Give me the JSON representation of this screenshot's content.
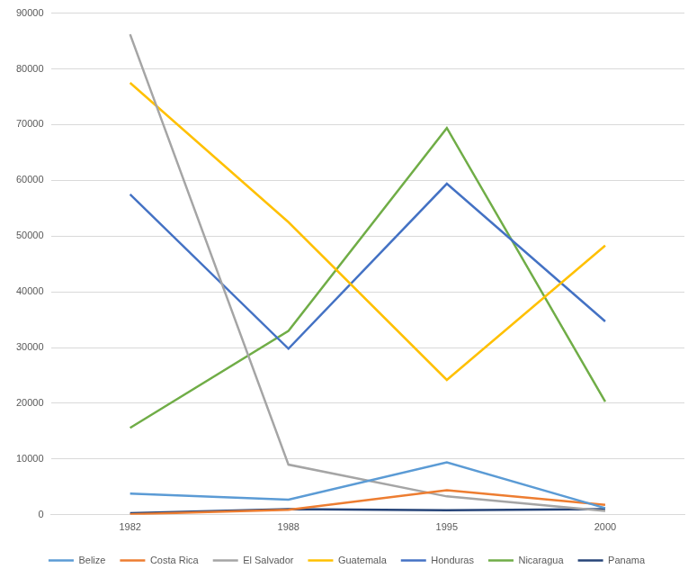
{
  "chart_data": {
    "type": "line",
    "categories": [
      "1982",
      "1988",
      "1995",
      "2000"
    ],
    "series": [
      {
        "name": "Belize",
        "color": "#5B9BD5",
        "values": [
          3800,
          2700,
          9400,
          1200
        ]
      },
      {
        "name": "Costa Rica",
        "color": "#ED7D31",
        "values": [
          100,
          900,
          4400,
          1800
        ]
      },
      {
        "name": "El Salvador",
        "color": "#A5A5A5",
        "values": [
          86200,
          9000,
          3300,
          700
        ]
      },
      {
        "name": "Guatemala",
        "color": "#FFC000",
        "values": [
          77500,
          52500,
          24200,
          48300
        ]
      },
      {
        "name": "Honduras",
        "color": "#4472C4",
        "values": [
          57500,
          29800,
          59400,
          34700
        ]
      },
      {
        "name": "Nicaragua",
        "color": "#70AD47",
        "values": [
          15600,
          33000,
          69400,
          20300
        ]
      },
      {
        "name": "Panama",
        "color": "#264478",
        "values": [
          300,
          1000,
          800,
          1000
        ]
      }
    ],
    "ylim": [
      0,
      90000
    ],
    "yticks": [
      0,
      10000,
      20000,
      30000,
      40000,
      50000,
      60000,
      70000,
      80000,
      90000
    ],
    "grid": true,
    "legend": "bottom"
  }
}
